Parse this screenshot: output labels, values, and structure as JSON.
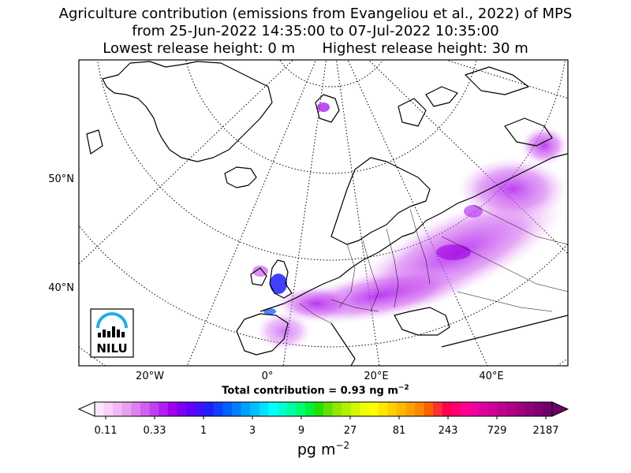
{
  "title": {
    "line1": "Agriculture contribution (emissions from Evangeliou et al., 2022) of MPS",
    "line2": "from 25-Jun-2022 14:35:00 to 07-Jul-2022 10:35:00",
    "line3_left": "Lowest release height: 0 m",
    "line3_right": "Highest release height: 30 m"
  },
  "map": {
    "lat_labels": [
      "50°N",
      "40°N"
    ],
    "lon_labels": [
      "20°W",
      "0°",
      "20°E",
      "40°E"
    ],
    "logo_text": "NILU",
    "colors": {
      "land_outline": "#000000",
      "graticule": "#000000",
      "plume_low": "#f0c8f8",
      "plume_mid": "#d060f0",
      "plume_high": "#a000e0",
      "plume_peak": "#2020ff",
      "logo_blue": "#1ab0e8"
    }
  },
  "total": {
    "label": "Total contribution = 0.93 ng m",
    "sup": "−2"
  },
  "colorbar": {
    "tick_labels": [
      "0.11",
      "0.33",
      "1",
      "3",
      "9",
      "27",
      "81",
      "243",
      "729",
      "2187"
    ],
    "units": "pg m",
    "units_sup": "−2",
    "colors": [
      "#fce8fc",
      "#f8d0f8",
      "#f0b8f4",
      "#e8a0f0",
      "#e080f0",
      "#d060f0",
      "#c040f0",
      "#b020f0",
      "#a000f0",
      "#8000f0",
      "#6000f8",
      "#4010ff",
      "#2020ff",
      "#1040ff",
      "#0060ff",
      "#0080ff",
      "#00a0ff",
      "#00c0ff",
      "#00e0ff",
      "#00ffff",
      "#00ffd0",
      "#00ffa0",
      "#00ff70",
      "#00f040",
      "#20e000",
      "#60e000",
      "#90e800",
      "#b0f000",
      "#d0f800",
      "#f0ff00",
      "#ffff00",
      "#ffe800",
      "#ffd000",
      "#ffb800",
      "#ffa000",
      "#ff8800",
      "#ff6000",
      "#ff3030",
      "#ff0050",
      "#ff0070",
      "#ff0090",
      "#f000a0",
      "#e000a0",
      "#d00098",
      "#c00090",
      "#b00088",
      "#a00080",
      "#900078",
      "#800070",
      "#700068"
    ]
  }
}
